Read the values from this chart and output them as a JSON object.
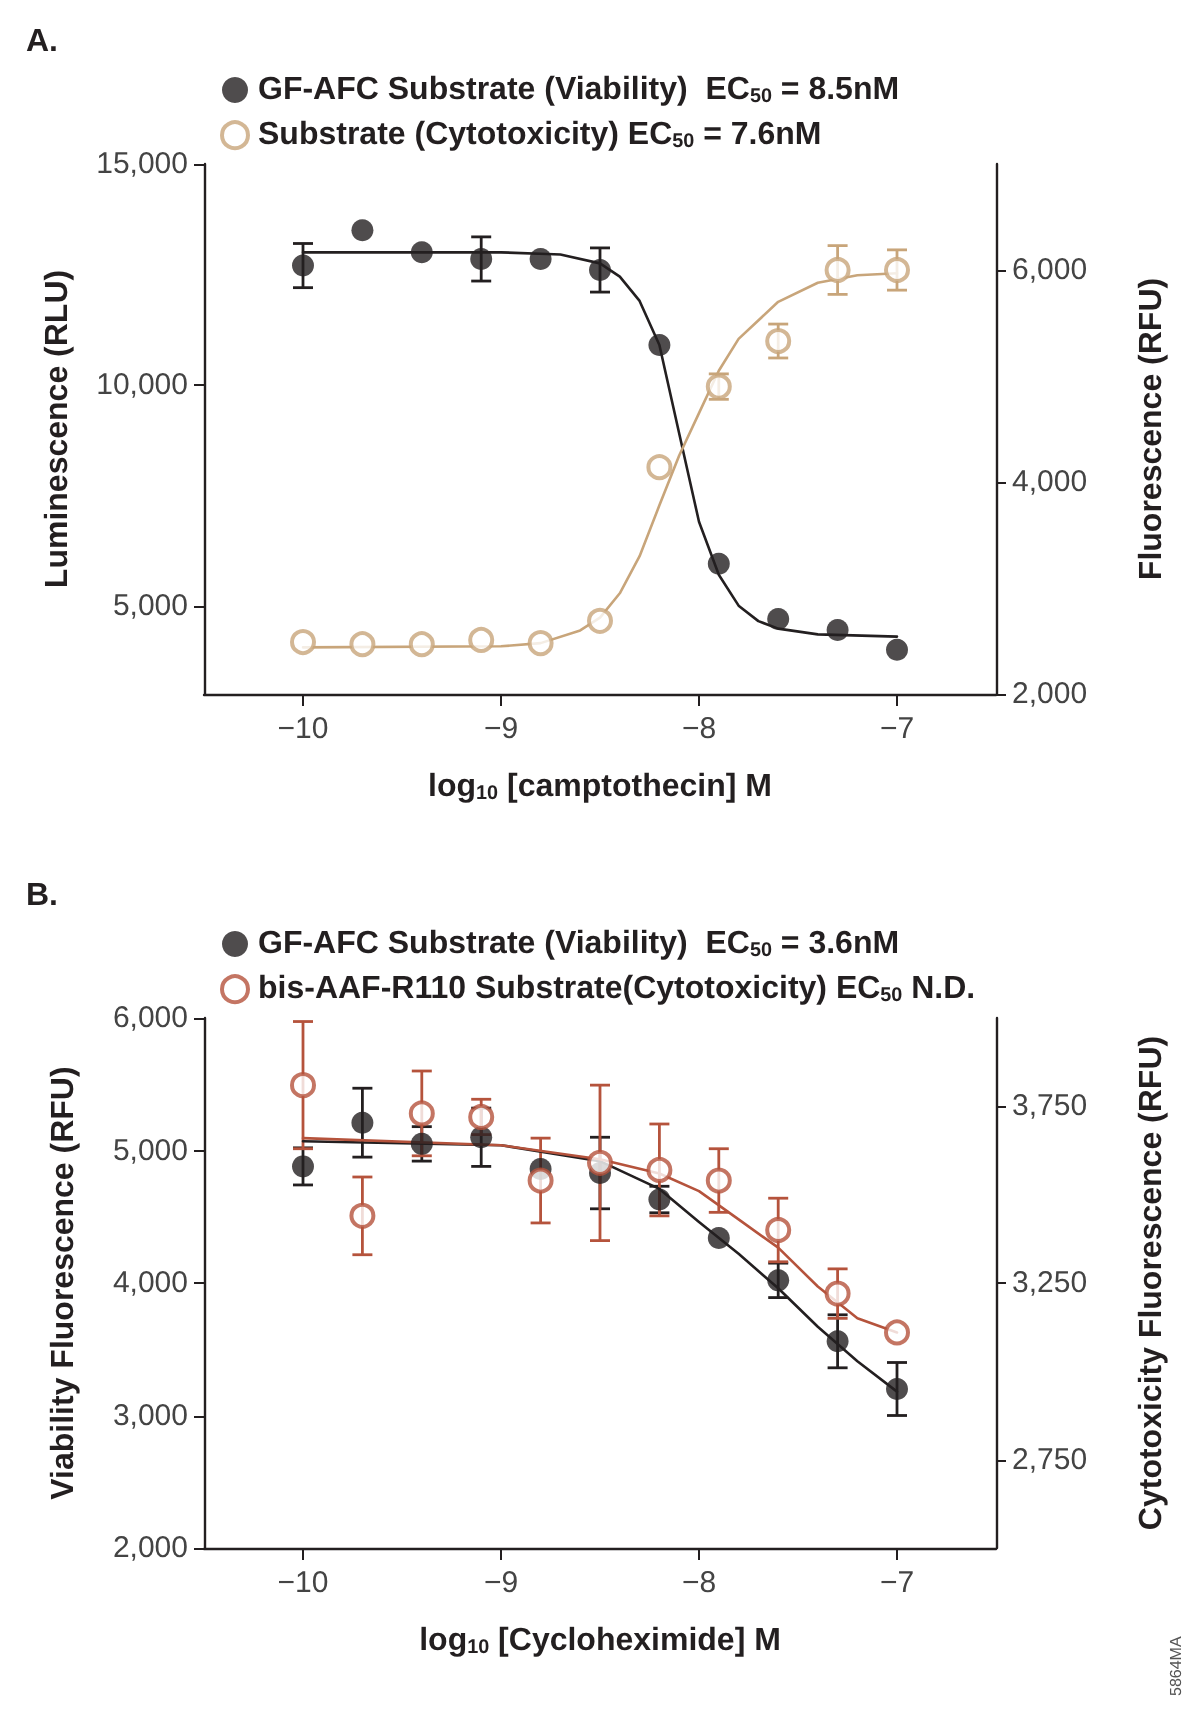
{
  "chart_data": [
    {
      "type": "scatter",
      "title": "A.",
      "xlabel": "log$_{10}$ [camptothecin] M",
      "ylabel": "Luminescence (RLU)",
      "y2label": "Fluorescence (RFU)",
      "legend": "top",
      "grid": false,
      "xlim": [
        -10.5,
        -6.5
      ],
      "xticks": [
        {
          "value": -10,
          "label": "−10"
        },
        {
          "value": -9,
          "label": "−9"
        },
        {
          "value": -8,
          "label": "−8"
        },
        {
          "value": -7,
          "label": "−7"
        }
      ],
      "ylim": [
        3000,
        15000
      ],
      "yticks": [
        {
          "value": 5000,
          "label": "5,000"
        },
        {
          "value": 10000,
          "label": "10,000"
        },
        {
          "value": 15000,
          "label": "15,000"
        }
      ],
      "y2lim": [
        2000,
        7000
      ],
      "y2ticks": [
        {
          "value": 2000,
          "label": "2,000"
        },
        {
          "value": 4000,
          "label": "4,000"
        },
        {
          "value": 6000,
          "label": "6,000"
        }
      ],
      "x": [
        -10,
        -9.7,
        -9.4,
        -9.1,
        -8.8,
        -8.5,
        -8.2,
        -7.9,
        -7.6,
        -7.3,
        -7
      ],
      "series": [
        {
          "name": "GF-AFC Substrate (Viability)  EC$_{50}$ = 8.5nM",
          "marker": "circle",
          "color": "#231f20",
          "values": [
            12700,
            13500,
            13000,
            12850,
            12850,
            12600,
            10900,
            5950,
            4700,
            4450,
            4000
          ],
          "errors": [
            500,
            null,
            null,
            500,
            null,
            500,
            null,
            null,
            null,
            null,
            null
          ]
        },
        {
          "name": "Substrate (Cytotoxicity) EC$_{50}$ = 7.6nM",
          "marker": "emptyCircle",
          "axis": "y2",
          "color": "#c8a57a",
          "values": [
            2490,
            2470,
            2470,
            2510,
            2480,
            2690,
            4140,
            4900,
            5330,
            6000,
            6000
          ],
          "errors": [
            null,
            null,
            null,
            null,
            null,
            null,
            null,
            120,
            160,
            230,
            190
          ]
        },
        {
          "type": "line",
          "marker": "none",
          "color": "#231f20",
          "x": [
            -10,
            -9,
            -8.7,
            -8.5,
            -8.4,
            -8.3,
            -8.2,
            -8.1,
            -8,
            -7.9,
            -7.8,
            -7.7,
            -7.6,
            -7.4,
            -7
          ],
          "values": [
            13000,
            13000,
            12950,
            12750,
            12450,
            11900,
            10900,
            8900,
            6900,
            5700,
            5000,
            4650,
            4480,
            4350,
            4300
          ]
        },
        {
          "type": "line",
          "marker": "none",
          "axis": "y2",
          "color": "#c8a57a",
          "x": [
            -10,
            -9,
            -8.8,
            -8.6,
            -8.5,
            -8.4,
            -8.3,
            -8.2,
            -8.1,
            -8,
            -7.9,
            -7.8,
            -7.6,
            -7.4,
            -7.2,
            -7
          ],
          "values": [
            2440,
            2450,
            2480,
            2600,
            2720,
            2950,
            3300,
            3780,
            4250,
            4650,
            5050,
            5350,
            5700,
            5880,
            5950,
            5970
          ]
        }
      ]
    },
    {
      "type": "scatter",
      "title": "B.",
      "xlabel": "log$_{10}$ [Cycloheximide] M",
      "ylabel": "Viability Fluorescence (RFU)",
      "y2label": "Cytotoxicity Fluorescence (RFU)",
      "legend": "top",
      "grid": false,
      "annotations": [
        "5864MA"
      ],
      "xlim": [
        -10.5,
        -6.5
      ],
      "xticks": [
        {
          "value": -10,
          "label": "−10"
        },
        {
          "value": -9,
          "label": "−9"
        },
        {
          "value": -8,
          "label": "−8"
        },
        {
          "value": -7,
          "label": "−7"
        }
      ],
      "ylim": [
        2000,
        6000
      ],
      "yticks": [
        {
          "value": 2000,
          "label": "2,000"
        },
        {
          "value": 3000,
          "label": "3,000"
        },
        {
          "value": 4000,
          "label": "4,000"
        },
        {
          "value": 5000,
          "label": "5,000"
        },
        {
          "value": 6000,
          "label": "6,000"
        }
      ],
      "y2lim": [
        2500,
        4000
      ],
      "y2ticks": [
        {
          "value": 2750,
          "label": "2,750"
        },
        {
          "value": 3250,
          "label": "3,250"
        },
        {
          "value": 3750,
          "label": "3,750"
        }
      ],
      "x": [
        -10,
        -9.7,
        -9.4,
        -9.1,
        -8.8,
        -8.5,
        -8.2,
        -7.9,
        -7.6,
        -7.3,
        -7
      ],
      "series": [
        {
          "name": "GF-AFC Substrate (Viability)  EC$_{50}$ = 3.6nM",
          "marker": "circle",
          "color": "#231f20",
          "values": [
            4880,
            5210,
            5050,
            5100,
            4860,
            4830,
            4630,
            4340,
            4020,
            3560,
            3200
          ],
          "errors": [
            140,
            260,
            130,
            220,
            null,
            270,
            100,
            null,
            130,
            200,
            200
          ]
        },
        {
          "name": "bis-AAF-R110 Substrate(Cytotoxicity) EC$_{50}$ N.D.",
          "marker": "emptyCircle",
          "axis": "y2",
          "color": "#b5533c",
          "values": [
            3810,
            3440,
            3730,
            3720,
            3540,
            3590,
            3570,
            3540,
            3400,
            3220,
            3110
          ],
          "errors": [
            180,
            110,
            120,
            50,
            120,
            220,
            130,
            90,
            90,
            70,
            null
          ]
        },
        {
          "type": "line",
          "marker": "none",
          "color": "#231f20",
          "x": [
            -10,
            -9,
            -8.5,
            -8.2,
            -8,
            -7.8,
            -7.6,
            -7.4,
            -7.2,
            -7
          ],
          "values": [
            5070,
            5040,
            4920,
            4710,
            4460,
            4220,
            3960,
            3670,
            3410,
            3180
          ]
        },
        {
          "type": "line",
          "marker": "none",
          "axis": "y2",
          "color": "#b5533c",
          "x": [
            -10,
            -9,
            -8.5,
            -8.2,
            -8,
            -7.8,
            -7.6,
            -7.4,
            -7.2,
            -7
          ],
          "values": [
            3660,
            3640,
            3600,
            3560,
            3510,
            3430,
            3350,
            3240,
            3150,
            3110
          ]
        }
      ]
    }
  ]
}
